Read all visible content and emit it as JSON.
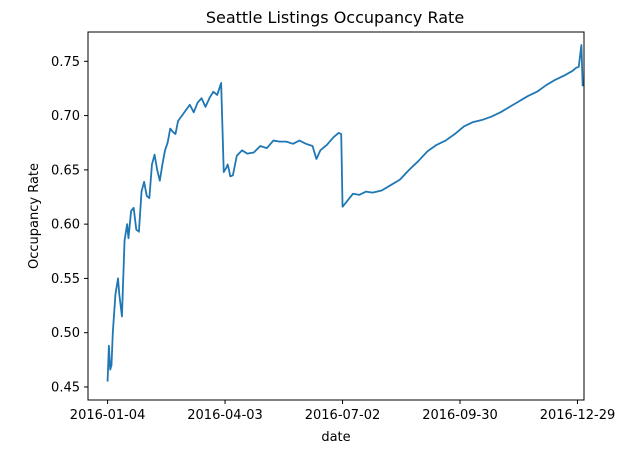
{
  "chart_data": {
    "type": "line",
    "title": "Seattle Listings Occupancy Rate",
    "xlabel": "date",
    "ylabel": "Occupancy Rate",
    "x_ticks": [
      "2016-01-04",
      "2016-04-03",
      "2016-07-02",
      "2016-09-30",
      "2016-12-29"
    ],
    "y_ticks": [
      "0.45",
      "0.50",
      "0.55",
      "0.60",
      "0.65",
      "0.70",
      "0.75"
    ],
    "xlim": [
      "2015-12-20",
      "2017-01-03"
    ],
    "ylim": [
      0.438,
      0.777
    ],
    "grid": false,
    "legend": "none",
    "colors": {
      "line": "#1f77b4",
      "axes": "#000000",
      "background": "#ffffff"
    },
    "series": [
      {
        "x": [
          "2016-01-04",
          "2016-01-05",
          "2016-01-06",
          "2016-01-07",
          "2016-01-08",
          "2016-01-10",
          "2016-01-12",
          "2016-01-13",
          "2016-01-15",
          "2016-01-17",
          "2016-01-19",
          "2016-01-20",
          "2016-01-22",
          "2016-01-24",
          "2016-01-26",
          "2016-01-28",
          "2016-01-30",
          "2016-02-01",
          "2016-02-03",
          "2016-02-05",
          "2016-02-07",
          "2016-02-09",
          "2016-02-11",
          "2016-02-13",
          "2016-02-15",
          "2016-02-17",
          "2016-02-19",
          "2016-02-21",
          "2016-02-23",
          "2016-02-25",
          "2016-02-27",
          "2016-03-01",
          "2016-03-04",
          "2016-03-07",
          "2016-03-10",
          "2016-03-13",
          "2016-03-16",
          "2016-03-19",
          "2016-03-22",
          "2016-03-25",
          "2016-03-28",
          "2016-03-31",
          "2016-04-02",
          "2016-04-04",
          "2016-04-05",
          "2016-04-06",
          "2016-04-07",
          "2016-04-09",
          "2016-04-12",
          "2016-04-16",
          "2016-04-20",
          "2016-04-25",
          "2016-04-30",
          "2016-05-05",
          "2016-05-10",
          "2016-05-15",
          "2016-05-20",
          "2016-05-25",
          "2016-05-30",
          "2016-06-04",
          "2016-06-09",
          "2016-06-12",
          "2016-06-15",
          "2016-06-20",
          "2016-06-25",
          "2016-06-29",
          "2016-07-01",
          "2016-07-02",
          "2016-07-06",
          "2016-07-10",
          "2016-07-15",
          "2016-07-20",
          "2016-07-25",
          "2016-08-01",
          "2016-08-08",
          "2016-08-15",
          "2016-08-22",
          "2016-08-29",
          "2016-09-05",
          "2016-09-12",
          "2016-09-19",
          "2016-09-26",
          "2016-10-03",
          "2016-10-10",
          "2016-10-17",
          "2016-10-24",
          "2016-10-31",
          "2016-11-07",
          "2016-11-14",
          "2016-11-21",
          "2016-11-28",
          "2016-12-05",
          "2016-12-12",
          "2016-12-19",
          "2016-12-25",
          "2016-12-28",
          "2016-12-30",
          "2017-01-01",
          "2017-01-02"
        ],
        "y": [
          0.455,
          0.488,
          0.466,
          0.47,
          0.5,
          0.535,
          0.55,
          0.535,
          0.515,
          0.585,
          0.6,
          0.587,
          0.612,
          0.615,
          0.595,
          0.593,
          0.63,
          0.639,
          0.626,
          0.624,
          0.655,
          0.664,
          0.65,
          0.64,
          0.655,
          0.668,
          0.675,
          0.688,
          0.685,
          0.683,
          0.695,
          0.7,
          0.705,
          0.71,
          0.703,
          0.712,
          0.716,
          0.708,
          0.716,
          0.722,
          0.719,
          0.73,
          0.648,
          0.652,
          0.655,
          0.65,
          0.644,
          0.645,
          0.663,
          0.668,
          0.665,
          0.666,
          0.672,
          0.67,
          0.677,
          0.676,
          0.676,
          0.674,
          0.677,
          0.674,
          0.672,
          0.66,
          0.668,
          0.673,
          0.68,
          0.684,
          0.683,
          0.616,
          0.622,
          0.628,
          0.627,
          0.63,
          0.629,
          0.631,
          0.636,
          0.641,
          0.65,
          0.658,
          0.667,
          0.673,
          0.677,
          0.683,
          0.69,
          0.694,
          0.696,
          0.699,
          0.703,
          0.708,
          0.713,
          0.718,
          0.722,
          0.728,
          0.733,
          0.737,
          0.741,
          0.744,
          0.745,
          0.765,
          0.727
        ]
      }
    ]
  }
}
